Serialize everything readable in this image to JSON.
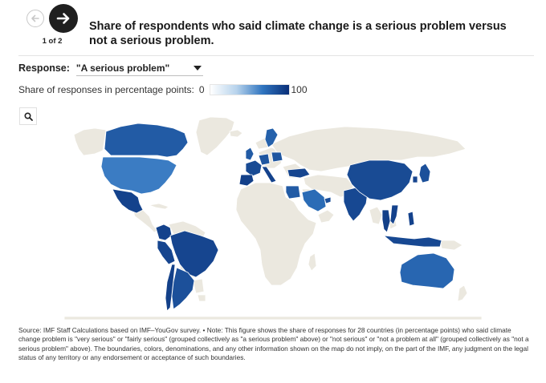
{
  "nav": {
    "page_counter": "1 of 2"
  },
  "title": "Share of respondents who said climate change is a serious problem versus not a serious problem.",
  "response": {
    "label": "Response:",
    "selected": "\"A serious problem\""
  },
  "legend": {
    "label": "Share of responses in percentage points:",
    "min": "0",
    "max": "100"
  },
  "colors": {
    "land": "#ebe8df",
    "border": "#ffffff",
    "scale_low": "#ffffff",
    "scale_high": "#0a2f78"
  },
  "map_data": {
    "metric": "share_serious_problem_pct",
    "countries": [
      {
        "name": "Canada",
        "value": 84
      },
      {
        "name": "United States",
        "value": 72
      },
      {
        "name": "Mexico",
        "value": 93
      },
      {
        "name": "Colombia",
        "value": 93
      },
      {
        "name": "Brazil",
        "value": 92
      },
      {
        "name": "Chile",
        "value": 94
      },
      {
        "name": "Argentina",
        "value": 88
      },
      {
        "name": "Peru",
        "value": 92
      },
      {
        "name": "United Kingdom",
        "value": 84
      },
      {
        "name": "France",
        "value": 90
      },
      {
        "name": "Spain",
        "value": 94
      },
      {
        "name": "Italy",
        "value": 93
      },
      {
        "name": "Germany",
        "value": 86
      },
      {
        "name": "Sweden",
        "value": 82
      },
      {
        "name": "Poland",
        "value": 86
      },
      {
        "name": "Turkey",
        "value": 92
      },
      {
        "name": "Egypt",
        "value": 84
      },
      {
        "name": "Saudi Arabia",
        "value": 78
      },
      {
        "name": "United Arab Emirates",
        "value": 88
      },
      {
        "name": "India",
        "value": 91
      },
      {
        "name": "China",
        "value": 90
      },
      {
        "name": "Japan",
        "value": 88
      },
      {
        "name": "South Korea",
        "value": 92
      },
      {
        "name": "Thailand",
        "value": 94
      },
      {
        "name": "Vietnam",
        "value": 93
      },
      {
        "name": "Philippines",
        "value": 93
      },
      {
        "name": "Indonesia",
        "value": 91
      },
      {
        "name": "Australia",
        "value": 80
      }
    ]
  },
  "source_text": "Source: IMF Staff Calculations based on IMF–YouGov survey. • Note: This figure shows the share of responses for 28 countries (in percentage points) who said climate change problem is \"very serious\" or \"fairly serious\" (grouped collectively as \"a serious problem\" above) or \"not serious\" or \"not a problem at all\" (grouped collectively as \"not a serious problem\" above). The boundaries, colors, denominations, and any other information shown on the map do not imply, on the part of the IMF, any judgment on the legal status of any territory or any endorsement or acceptance of such boundaries."
}
